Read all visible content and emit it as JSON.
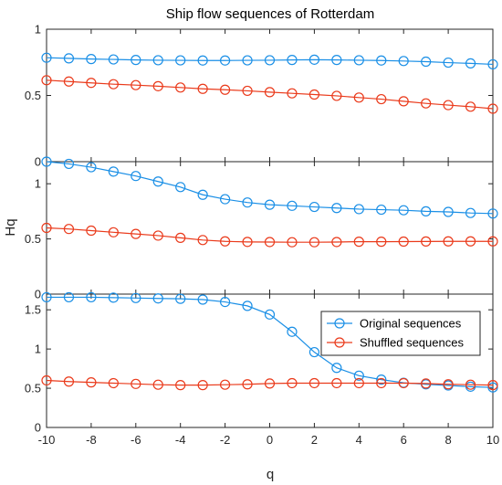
{
  "chart_data": {
    "type": "line",
    "title": "Ship flow sequences of Rotterdam",
    "xlabel": "q",
    "ylabel": "Hq",
    "x": [
      -10,
      -9,
      -8,
      -7,
      -6,
      -5,
      -4,
      -3,
      -2,
      -1,
      0,
      1,
      2,
      3,
      4,
      5,
      6,
      7,
      8,
      9,
      10
    ],
    "xlim": [
      -10,
      10
    ],
    "xticks": [
      "-10",
      "-8",
      "-6",
      "-4",
      "-2",
      "0",
      "2",
      "4",
      "6",
      "8",
      "10"
    ],
    "grid": false,
    "legend": {
      "placement": "right",
      "entries": [
        "Original sequences",
        "Shuffled sequences"
      ]
    },
    "colors": {
      "original": "#1a8fe6",
      "shuffled": "#ea3a1b",
      "axes": "#262626"
    },
    "panels": [
      {
        "ylim": [
          0,
          1
        ],
        "yticks": [
          "0",
          "0.5",
          "1"
        ],
        "series": [
          {
            "name": "Original sequences",
            "values": [
              0.785,
              0.78,
              0.775,
              0.772,
              0.768,
              0.766,
              0.765,
              0.764,
              0.764,
              0.765,
              0.766,
              0.768,
              0.77,
              0.768,
              0.766,
              0.764,
              0.76,
              0.755,
              0.748,
              0.742,
              0.735
            ]
          },
          {
            "name": "Shuffled sequences",
            "values": [
              0.615,
              0.605,
              0.595,
              0.585,
              0.578,
              0.57,
              0.56,
              0.55,
              0.543,
              0.535,
              0.525,
              0.516,
              0.507,
              0.497,
              0.484,
              0.472,
              0.456,
              0.44,
              0.427,
              0.415,
              0.4
            ]
          }
        ]
      },
      {
        "ylim": [
          0,
          1.2
        ],
        "yticks": [
          "0",
          "0.5",
          "1"
        ],
        "series": [
          {
            "name": "Original sequences",
            "values": [
              1.2,
              1.18,
              1.15,
              1.11,
              1.07,
              1.02,
              0.97,
              0.9,
              0.86,
              0.83,
              0.81,
              0.8,
              0.79,
              0.78,
              0.77,
              0.765,
              0.76,
              0.75,
              0.745,
              0.735,
              0.73
            ]
          },
          {
            "name": "Shuffled sequences",
            "values": [
              0.6,
              0.59,
              0.575,
              0.56,
              0.545,
              0.53,
              0.51,
              0.49,
              0.478,
              0.473,
              0.472,
              0.47,
              0.47,
              0.472,
              0.475,
              0.475,
              0.476,
              0.477,
              0.478,
              0.478,
              0.478
            ]
          }
        ]
      },
      {
        "ylim": [
          0,
          1.7
        ],
        "yticks": [
          "0",
          "0.5",
          "1",
          "1.5"
        ],
        "series": [
          {
            "name": "Original sequences",
            "values": [
              1.66,
              1.66,
              1.66,
              1.655,
              1.65,
              1.645,
              1.64,
              1.63,
              1.6,
              1.55,
              1.44,
              1.22,
              0.96,
              0.76,
              0.66,
              0.61,
              0.57,
              0.55,
              0.535,
              0.52,
              0.51
            ]
          },
          {
            "name": "Shuffled sequences",
            "values": [
              0.6,
              0.585,
              0.575,
              0.565,
              0.555,
              0.545,
              0.54,
              0.54,
              0.545,
              0.55,
              0.56,
              0.565,
              0.565,
              0.565,
              0.565,
              0.565,
              0.565,
              0.56,
              0.55,
              0.545,
              0.54
            ]
          }
        ]
      }
    ]
  }
}
